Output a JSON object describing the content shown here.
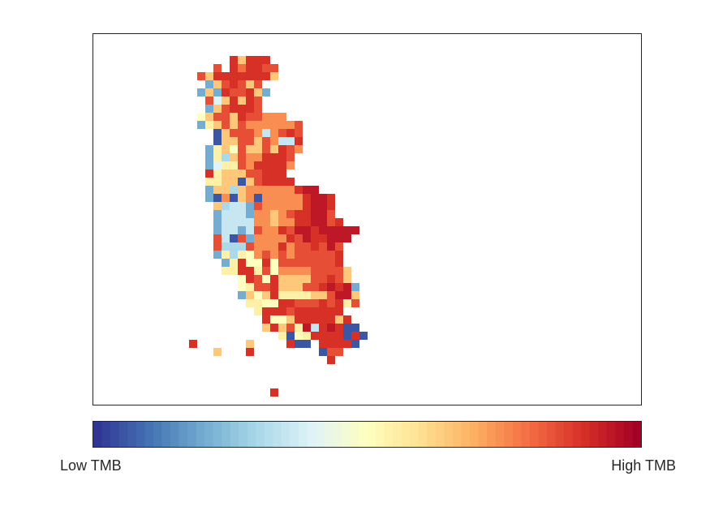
{
  "chart_data": {
    "type": "heatmap",
    "title": "",
    "xlabel": "",
    "ylabel": "",
    "grid": false,
    "axes_ticks": false,
    "value_range": [
      -1,
      1
    ],
    "colormap": [
      "#313695",
      "#4575b4",
      "#74add1",
      "#abd9e9",
      "#e0f3f8",
      "#ffffbf",
      "#fee090",
      "#fdae61",
      "#f46d43",
      "#d73027",
      "#a50026"
    ],
    "colorbar": {
      "low_label": "Low TMB",
      "high_label": "High TMB",
      "placement": "bottom"
    },
    "tile_rows": [
      {
        "row": 2,
        "start_col": 11,
        "values": [
          0.8,
          0.3,
          0.8,
          0.8,
          0.8
        ]
      },
      {
        "row": 3,
        "start_col": 9,
        "values": [
          0.7,
          null,
          0.8,
          0.6,
          0.8,
          0.8,
          0.7,
          0.7
        ]
      },
      {
        "row": 4,
        "start_col": 7,
        "values": [
          0.7,
          0.3,
          0.8,
          0.8,
          0.8,
          0.8,
          0.8,
          0.8,
          0.8,
          0.3
        ]
      },
      {
        "row": 5,
        "start_col": 8,
        "values": [
          -0.6,
          0.3,
          0.7,
          0.8,
          0.7,
          0.3,
          0.7
        ]
      },
      {
        "row": 6,
        "start_col": 7,
        "values": [
          -0.6,
          0.3,
          -0.6,
          0.8,
          0.7,
          0.7,
          0.8,
          0.3,
          -0.6
        ]
      },
      {
        "row": 7,
        "start_col": 8,
        "values": [
          0.7,
          -0.2,
          0.3,
          0.8,
          0.3,
          0.8,
          0.7
        ]
      },
      {
        "row": 8,
        "start_col": 8,
        "values": [
          -0.6,
          0.3,
          0.7,
          0.8,
          0.8,
          0.8,
          0.7
        ]
      },
      {
        "row": 9,
        "start_col": 7,
        "values": [
          0.0,
          0.3,
          0.7,
          0.7,
          0.3,
          0.8,
          0.7,
          0.7,
          0.5,
          0.5,
          0.5
        ]
      },
      {
        "row": 10,
        "start_col": 7,
        "values": [
          -0.6,
          0.1,
          0.3,
          0.7,
          0.3,
          0.7,
          0.5,
          0.5,
          0.5,
          0.5,
          0.5,
          0.5,
          0.7
        ]
      },
      {
        "row": 11,
        "start_col": 9,
        "values": [
          -0.9,
          0.3,
          0.7,
          0.7,
          0.7,
          0.5,
          -0.3,
          0.5,
          0.7,
          0.8,
          0.7
        ]
      },
      {
        "row": 12,
        "start_col": 9,
        "values": [
          -0.9,
          0.3,
          0.3,
          0.7,
          0.7,
          0.3,
          0.7,
          0.5,
          -0.3,
          -0.3,
          0.8
        ]
      },
      {
        "row": 13,
        "start_col": 8,
        "values": [
          -0.6,
          0.1,
          0.3,
          0.0,
          0.7,
          0.3,
          0.3,
          0.7,
          0.3,
          0.8,
          0.7,
          0.5
        ]
      },
      {
        "row": 14,
        "start_col": 8,
        "values": [
          -0.6,
          0.1,
          -0.4,
          0.3,
          0.7,
          0.5,
          0.5,
          0.8,
          0.8,
          0.8,
          0.7
        ]
      },
      {
        "row": 15,
        "start_col": 8,
        "values": [
          -0.6,
          -0.2,
          0.1,
          0.1,
          0.7,
          0.5,
          0.8,
          0.8,
          0.8,
          0.8,
          0.5
        ]
      },
      {
        "row": 16,
        "start_col": 8,
        "values": [
          0.8,
          0.1,
          0.3,
          0.3,
          0.3,
          0.7,
          0.7,
          0.8,
          0.8,
          0.8
        ]
      },
      {
        "row": 17,
        "start_col": 8,
        "values": [
          0.1,
          0.1,
          0.3,
          0.3,
          -0.9,
          0.3,
          0.7,
          0.8,
          0.8,
          0.8,
          0.8
        ]
      },
      {
        "row": 18,
        "start_col": 8,
        "values": [
          -0.6,
          0.3,
          0.3,
          -0.4,
          0.3,
          0.5,
          0.5,
          0.5,
          0.5,
          0.5,
          0.5,
          0.8,
          0.9,
          0.9
        ]
      },
      {
        "row": 19,
        "start_col": 8,
        "values": [
          -0.6,
          -0.9,
          0.5,
          -0.9,
          0.3,
          0.5,
          -0.9,
          0.5,
          0.5,
          0.5,
          0.5,
          0.5,
          0.8,
          0.9,
          0.9,
          0.8
        ]
      },
      {
        "row": 20,
        "start_col": 9,
        "values": [
          0.3,
          -0.4,
          -0.3,
          -0.3,
          -0.6,
          0.7,
          0.5,
          0.5,
          0.5,
          0.5,
          0.5,
          0.8,
          0.9,
          0.9,
          0.8
        ]
      },
      {
        "row": 21,
        "start_col": 9,
        "values": [
          -0.6,
          -0.3,
          -0.3,
          -0.3,
          -0.6,
          0.5,
          0.5,
          0.3,
          0.5,
          0.7,
          0.8,
          0.8,
          0.9,
          0.9,
          0.7
        ]
      },
      {
        "row": 22,
        "start_col": 9,
        "values": [
          -0.6,
          -0.3,
          -0.3,
          -0.3,
          -0.3,
          0.5,
          0.5,
          0.3,
          0.5,
          0.5,
          0.8,
          0.8,
          0.9,
          0.9,
          0.7,
          0.8
        ]
      },
      {
        "row": 23,
        "start_col": 9,
        "values": [
          -0.6,
          -0.3,
          -0.3,
          -0.6,
          -0.3,
          0.7,
          0.5,
          0.5,
          0.8,
          0.7,
          0.9,
          0.9,
          0.8,
          0.9,
          0.9,
          0.9,
          0.9,
          0.9
        ]
      },
      {
        "row": 24,
        "start_col": 9,
        "values": [
          0.7,
          -0.3,
          -0.9,
          0.7,
          -0.6,
          0.5,
          0.5,
          0.5,
          0.5,
          0.8,
          0.7,
          0.9,
          0.8,
          0.8,
          0.9,
          0.9,
          0.9
        ]
      },
      {
        "row": 25,
        "start_col": 9,
        "values": [
          0.7,
          -0.4,
          -0.4,
          -0.4,
          0.7,
          0.5,
          0.5,
          0.5,
          0.8,
          0.5,
          0.7,
          0.7,
          0.8,
          0.7,
          0.9,
          0.7
        ]
      },
      {
        "row": 26,
        "start_col": 9,
        "values": [
          -0.6,
          0.1,
          -0.4,
          0.1,
          0.0,
          0.5,
          0.7,
          0.5,
          0.7,
          0.5,
          0.7,
          0.7,
          0.7,
          0.7,
          0.7,
          0.8
        ]
      },
      {
        "row": 27,
        "start_col": 10,
        "values": [
          -0.6,
          0.1,
          0.8,
          0.0,
          0.0,
          0.8,
          0.0,
          0.7,
          0.7,
          0.7,
          0.7,
          0.7,
          0.7,
          0.7,
          0.8
        ]
      },
      {
        "row": 28,
        "start_col": 10,
        "values": [
          0.1,
          0.1,
          0.8,
          0.8,
          0.1,
          0.7,
          0.0,
          0.5,
          0.5,
          0.5,
          0.5,
          0.7,
          0.7,
          0.7,
          0.7,
          0.3
        ]
      },
      {
        "row": 29,
        "start_col": 12,
        "values": [
          0.0,
          0.8,
          0.7,
          0.0,
          0.8,
          0.3,
          0.3,
          0.3,
          0.3,
          0.7,
          0.7,
          0.8,
          0.7,
          0.3
        ]
      },
      {
        "row": 30,
        "start_col": 12,
        "values": [
          0.0,
          0.1,
          0.7,
          0.7,
          0.8,
          0.3,
          0.3,
          0.3,
          0.7,
          0.7,
          0.8,
          0.9,
          0.8,
          0.9,
          -0.6
        ]
      },
      {
        "row": 31,
        "start_col": 12,
        "values": [
          -0.6,
          0.3,
          0.0,
          0.3,
          0.8,
          0.1,
          0.1,
          0.1,
          0.1,
          0.3,
          0.3,
          0.7,
          0.9,
          0.9,
          0.3
        ]
      },
      {
        "row": 32,
        "start_col": 13,
        "values": [
          0.1,
          0.1,
          0.0,
          0.0,
          0.8,
          0.8,
          0.7,
          0.7,
          0.7,
          0.8,
          0.7,
          0.8,
          0.1,
          0.7
        ]
      },
      {
        "row": 33,
        "start_col": 14,
        "values": [
          0.1,
          0.8,
          0.8,
          0.8,
          0.7,
          0.8,
          0.8,
          0.8,
          0.8,
          0.8,
          0.8
        ]
      },
      {
        "row": 34,
        "start_col": 15,
        "values": [
          0.8,
          0.0,
          0.0,
          0.3,
          0.8,
          0.8,
          0.8,
          0.8,
          0.8,
          0.3,
          0.8
        ]
      },
      {
        "row": 35,
        "start_col": 15,
        "values": [
          0.3,
          0.8,
          0.3,
          0.7,
          0.1,
          0.9,
          -0.3,
          0.8,
          0.9,
          0.8,
          -0.9,
          -0.9
        ]
      },
      {
        "row": 36,
        "start_col": 17,
        "values": [
          0.1,
          -0.9,
          0.0,
          0.1,
          0.8,
          0.8,
          0.8,
          0.8,
          -0.9,
          0.8,
          -0.9
        ]
      },
      {
        "row": 37,
        "start_col": 18,
        "values": [
          0.8,
          -0.9,
          -0.9,
          null,
          0.8,
          0.8,
          0.8,
          0.8,
          -0.9
        ]
      },
      {
        "row": 38,
        "start_col": 22,
        "values": [
          -0.9,
          0.7,
          0.7
        ]
      },
      {
        "row": 39,
        "start_col": 23,
        "values": [
          0.8
        ]
      },
      {
        "row": 43,
        "start_col": 16,
        "values": [
          0.8
        ]
      }
    ],
    "extra_tiles": [
      {
        "row": 37,
        "col": 6,
        "value": 0.8
      },
      {
        "row": 38,
        "col": 9,
        "value": 0.3
      },
      {
        "row": 37,
        "col": 13,
        "value": 0.3
      },
      {
        "row": 38,
        "col": 13,
        "value": 0.8
      }
    ]
  }
}
